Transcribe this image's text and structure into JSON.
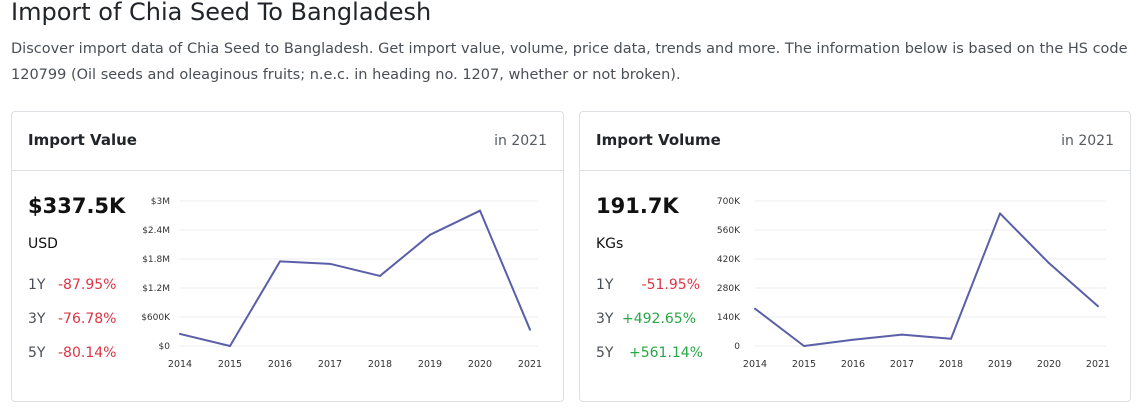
{
  "page": {
    "title": "Import of Chia Seed To Bangladesh",
    "description": "Discover import data of Chia Seed to Bangladesh. Get import value, volume, price data, trends and more. The information below is based on the HS code 120799 (Oil seeds and oleaginous fruits; n.e.c. in heading no. 1207, whether or not broken)."
  },
  "value_card": {
    "title": "Import Value",
    "year_note": "in 2021",
    "amount": "$337.5K",
    "unit": "USD",
    "stats": [
      {
        "label": "1Y",
        "value": "-87.95%"
      },
      {
        "label": "3Y",
        "value": "-76.78%"
      },
      {
        "label": "5Y",
        "value": "-80.14%"
      }
    ]
  },
  "volume_card": {
    "title": "Import Volume",
    "year_note": "in 2021",
    "amount": "191.7K",
    "unit": "KGs",
    "stats": [
      {
        "label": "1Y",
        "value": "-51.95%"
      },
      {
        "label": "3Y",
        "value": "+492.65%"
      },
      {
        "label": "5Y",
        "value": "+561.14%"
      }
    ]
  },
  "colors": {
    "line": "#5a5fa8",
    "negative": "#dc3545",
    "positive": "#28a745",
    "grid": "#e9ecef"
  },
  "chart_data": [
    {
      "type": "line",
      "title": "Import Value",
      "categories": [
        "2014",
        "2015",
        "2016",
        "2017",
        "2018",
        "2019",
        "2020",
        "2021"
      ],
      "values": [
        250000,
        0,
        1750000,
        1700000,
        1450000,
        2300000,
        2800000,
        337500
      ],
      "ylim": [
        0,
        3000000
      ],
      "yticks": [
        0,
        600000,
        1200000,
        1800000,
        2400000,
        3000000
      ],
      "ytick_labels": [
        "$0",
        "$600K",
        "$1.2M",
        "$1.8M",
        "$2.4M",
        "$3M"
      ]
    },
    {
      "type": "line",
      "title": "Import Volume",
      "categories": [
        "2014",
        "2015",
        "2016",
        "2017",
        "2018",
        "2019",
        "2020",
        "2021"
      ],
      "values": [
        180000,
        0,
        30000,
        55000,
        35000,
        640000,
        400000,
        191700
      ],
      "ylim": [
        0,
        700000
      ],
      "yticks": [
        0,
        140000,
        280000,
        420000,
        560000,
        700000
      ],
      "ytick_labels": [
        "0",
        "140K",
        "280K",
        "420K",
        "560K",
        "700K"
      ]
    }
  ]
}
